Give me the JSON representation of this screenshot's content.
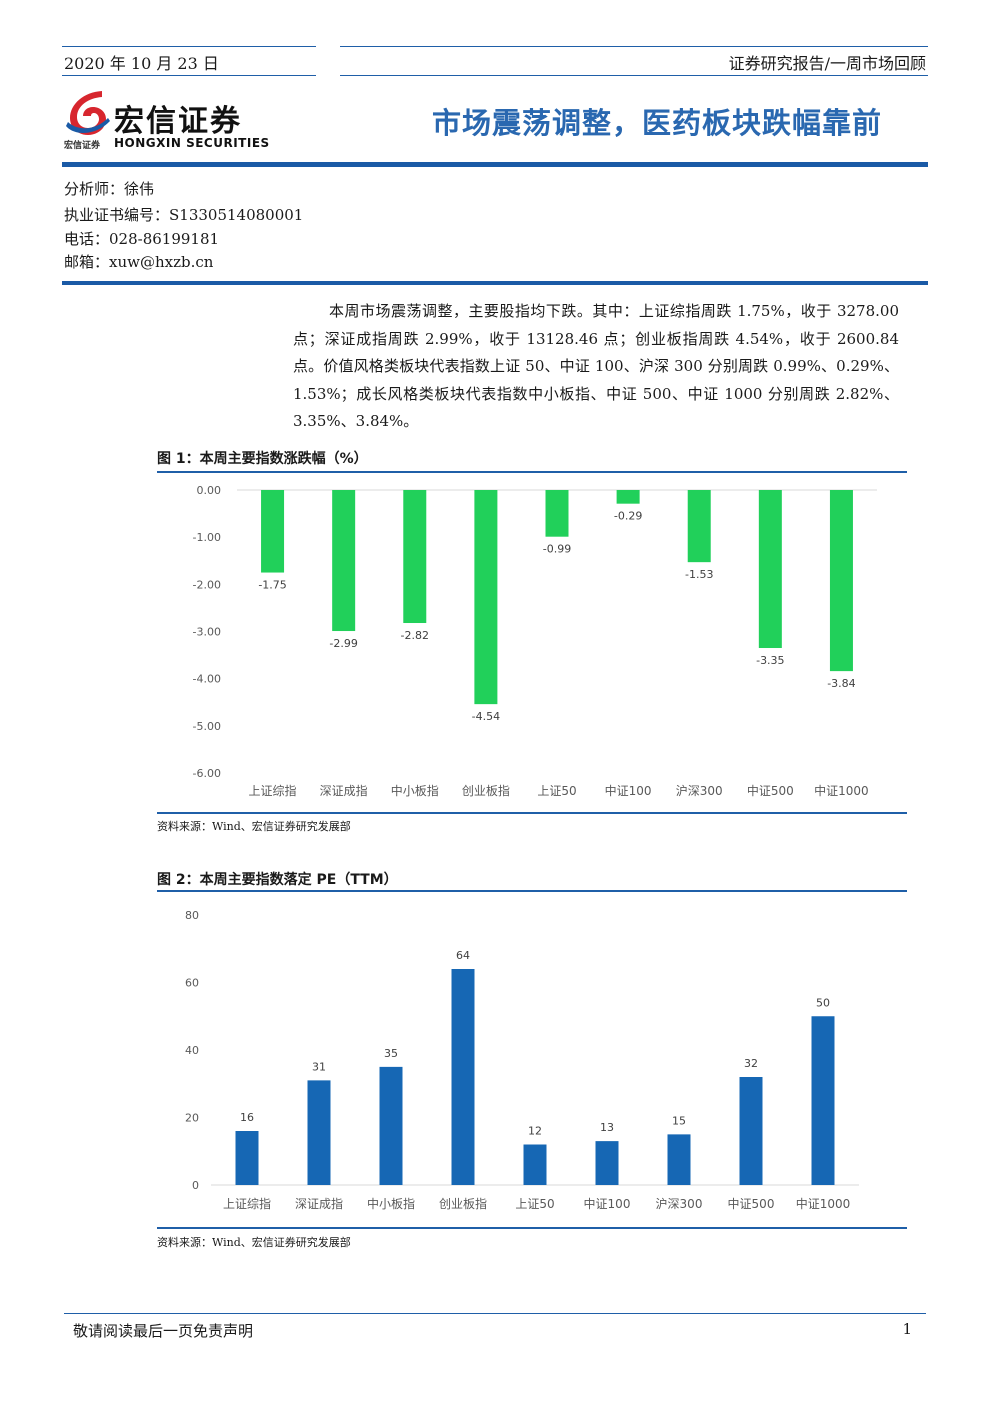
{
  "header": {
    "date": "2020 年 10 月 23 日",
    "series": "证券研究报告/一周市场回顾",
    "title": "市场震荡调整，医药板块跌幅靠前"
  },
  "logo": {
    "name_cn": "宏信证券",
    "name_en": "HONGXIN SECURITIES",
    "small_cn": "宏信证券",
    "colors": {
      "red": "#d7262e",
      "blue": "#1a5aa6"
    }
  },
  "analyst": {
    "name": "分析师：徐伟",
    "license": "执业证书编号：S1330514080001",
    "phone": "电话：028-86199181",
    "email": "邮箱：xuw@hxzb.cn"
  },
  "summary": "本周市场震荡调整，主要股指均下跌。其中：上证综指周跌 1.75%，收于 3278.00 点；深证成指周跌 2.99%，收于 13128.46 点；创业板指周跌 4.54%，收于 2600.84 点。价值风格类板块代表指数上证 50、中证 100、沪深 300 分别周跌 0.99%、0.29%、1.53%；成长风格类板块代表指数中小板指、中证 500、中证 1000 分别周跌 2.82%、3.35%、3.84%。",
  "figures": {
    "fig1": {
      "title": "图 1：本周主要指数涨跌幅（%）",
      "source": "资料来源：Wind、宏信证券研究发展部"
    },
    "fig2": {
      "title": "图 2：本周主要指数落定 PE（TTM）",
      "source": "资料来源：Wind、宏信证券研究发展部"
    }
  },
  "chart_data": [
    {
      "type": "bar",
      "categories": [
        "上证综指",
        "深证成指",
        "中小板指",
        "创业板指",
        "上证50",
        "中证100",
        "沪深300",
        "中证500",
        "中证1000"
      ],
      "values": [
        -1.75,
        -2.99,
        -2.82,
        -4.54,
        -0.99,
        -0.29,
        -1.53,
        -3.35,
        -3.84
      ],
      "value_labels": [
        "-1.75",
        "-2.99",
        "-2.82",
        "-4.54",
        "-0.99",
        "-0.29",
        "-1.53",
        "-3.35",
        "-3.84"
      ],
      "ylim": [
        -6,
        0
      ],
      "yticks": [
        "0.00",
        "-1.00",
        "-2.00",
        "-3.00",
        "-4.00",
        "-5.00",
        "-6.00"
      ],
      "ytick_values": [
        0,
        -1,
        -2,
        -3,
        -4,
        -5,
        -6
      ],
      "color": "#21d05a",
      "grid": false
    },
    {
      "type": "bar",
      "categories": [
        "上证综指",
        "深证成指",
        "中小板指",
        "创业板指",
        "上证50",
        "中证100",
        "沪深300",
        "中证500",
        "中证1000"
      ],
      "values": [
        16,
        31,
        35,
        64,
        12,
        13,
        15,
        32,
        50
      ],
      "value_labels": [
        "16",
        "31",
        "35",
        "64",
        "12",
        "13",
        "15",
        "32",
        "50"
      ],
      "ylim": [
        0,
        80
      ],
      "yticks": [
        "80",
        "60",
        "40",
        "20",
        "0"
      ],
      "ytick_values": [
        80,
        60,
        40,
        20,
        0
      ],
      "color": "#1667b4",
      "grid": false
    }
  ],
  "footer": {
    "note": "敬请阅读最后一页免责声明",
    "page": "1"
  }
}
